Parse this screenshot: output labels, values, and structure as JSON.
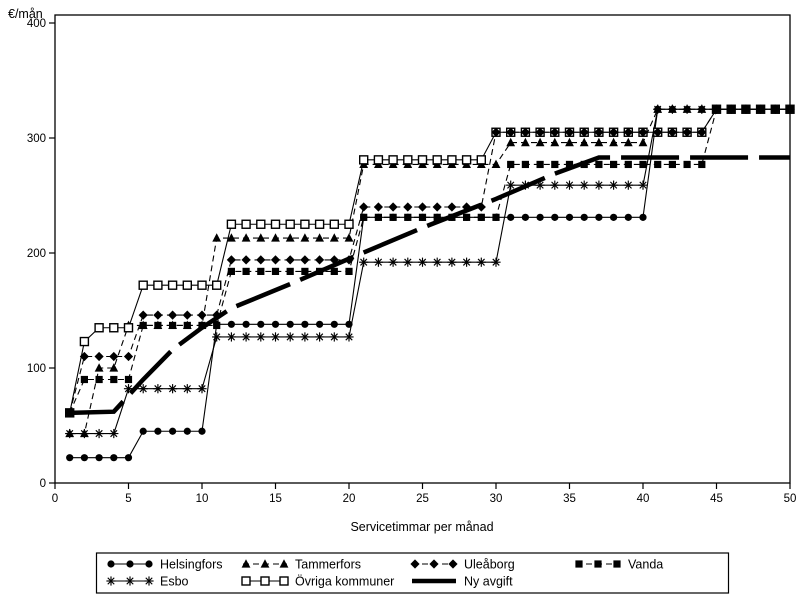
{
  "chart_data": {
    "type": "line",
    "title": "",
    "ylabel": "€/mån",
    "xlabel": "Servicetimmar per månad",
    "xlim": [
      0,
      50
    ],
    "ylim": [
      0,
      400
    ],
    "xticks": [
      0,
      5,
      10,
      15,
      20,
      25,
      30,
      35,
      40,
      45,
      50
    ],
    "yticks": [
      0,
      100,
      200,
      300,
      400
    ],
    "grid": false,
    "frame": true,
    "legend_position": "bottom",
    "colors": {
      "foreground": "#000000",
      "background": "#ffffff"
    },
    "series": [
      {
        "name": "Helsingfors",
        "marker": "circle",
        "line": "solid",
        "thick": false,
        "segments": [
          [
            1,
            5,
            22
          ],
          [
            6,
            10,
            45
          ],
          [
            11,
            20,
            138
          ],
          [
            21,
            40,
            231
          ],
          [
            41,
            50,
            325
          ]
        ]
      },
      {
        "name": "Esbo",
        "marker": "star",
        "line": "solid",
        "thick": false,
        "segments": [
          [
            1,
            4,
            43
          ],
          [
            5,
            10,
            82
          ],
          [
            11,
            20,
            127
          ],
          [
            21,
            30,
            192
          ],
          [
            31,
            40,
            259
          ],
          [
            41,
            50,
            325
          ]
        ]
      },
      {
        "name": "Tammerfors",
        "marker": "triangle",
        "line": "dashed",
        "thick": false,
        "segments": [
          [
            1,
            2,
            43
          ],
          [
            3,
            4,
            100
          ],
          [
            5,
            10,
            137
          ],
          [
            11,
            20,
            213
          ],
          [
            21,
            30,
            277
          ],
          [
            31,
            40,
            296
          ],
          [
            41,
            50,
            325
          ]
        ]
      },
      {
        "name": "Övriga kommuner",
        "marker": "open-square",
        "line": "solid",
        "thick": false,
        "segments": [
          [
            1,
            1,
            61
          ],
          [
            2,
            2,
            123
          ],
          [
            3,
            5,
            135
          ],
          [
            6,
            11,
            172
          ],
          [
            12,
            20,
            225
          ],
          [
            21,
            29,
            281
          ],
          [
            30,
            44,
            305
          ],
          [
            45,
            50,
            325
          ]
        ]
      },
      {
        "name": "Uleåborg",
        "marker": "diamond",
        "line": "dashed",
        "thick": false,
        "segments": [
          [
            1,
            1,
            61
          ],
          [
            2,
            5,
            110
          ],
          [
            6,
            11,
            146
          ],
          [
            12,
            20,
            194
          ],
          [
            21,
            29,
            240
          ],
          [
            30,
            44,
            305
          ],
          [
            45,
            50,
            325
          ]
        ]
      },
      {
        "name": "Vanda",
        "marker": "square",
        "line": "dashed",
        "thick": false,
        "segments": [
          [
            1,
            1,
            61
          ],
          [
            2,
            5,
            90
          ],
          [
            6,
            11,
            137
          ],
          [
            12,
            20,
            184
          ],
          [
            21,
            30,
            231
          ],
          [
            31,
            44,
            277
          ],
          [
            45,
            50,
            325
          ]
        ]
      },
      {
        "name": "Ny avgift",
        "marker": "none",
        "line": "long-dash",
        "thick": true,
        "points": [
          [
            1,
            61
          ],
          [
            4,
            62
          ],
          [
            6,
            90
          ],
          [
            8,
            116
          ],
          [
            10,
            135
          ],
          [
            12,
            152
          ],
          [
            16,
            173
          ],
          [
            20,
            195
          ],
          [
            25,
            222
          ],
          [
            30,
            247
          ],
          [
            34,
            269
          ],
          [
            37,
            283
          ],
          [
            50,
            283
          ]
        ]
      }
    ],
    "legend": {
      "rows": [
        [
          "Helsingfors",
          "Tammerfors",
          "Uleåborg",
          "Vanda"
        ],
        [
          "Esbo",
          "Övriga kommuner",
          "Ny avgift"
        ]
      ]
    }
  }
}
